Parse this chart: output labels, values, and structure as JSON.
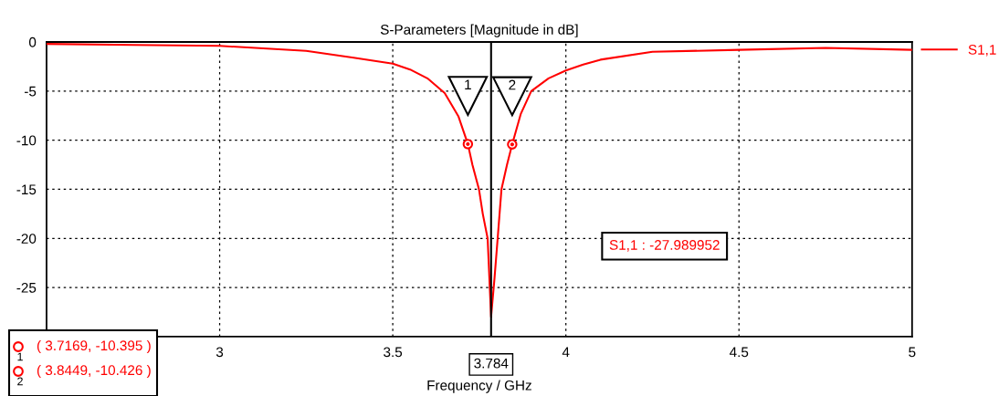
{
  "chart_data": {
    "type": "line",
    "title": "S-Parameters [Magnitude in dB]",
    "xlabel": "Frequency / GHz",
    "xlim": [
      2.5,
      5
    ],
    "xticks": [
      3,
      3.5,
      4,
      4.5,
      5
    ],
    "ylim": [
      -30,
      0
    ],
    "yticks": [
      0,
      -5,
      -10,
      -15,
      -20,
      -25
    ],
    "grid": true,
    "legend": "right",
    "line_style": "solid",
    "series": [
      {
        "name": "S1,1",
        "color": "#ff0000",
        "marker": "none",
        "x": [
          2.5,
          2.75,
          3.0,
          3.25,
          3.387,
          3.5,
          3.55,
          3.6,
          3.65,
          3.69,
          3.7169,
          3.73,
          3.749,
          3.76,
          3.774,
          3.784,
          3.794,
          3.803,
          3.814,
          3.83,
          3.8449,
          3.87,
          3.9,
          3.95,
          4.0,
          4.05,
          4.1,
          4.25,
          4.5,
          4.75,
          5.0
        ],
        "values": [
          -0.2,
          -0.3,
          -0.4,
          -0.9,
          -1.6,
          -2.2,
          -2.8,
          -3.7,
          -5.2,
          -7.6,
          -10.395,
          -12.5,
          -15.0,
          -17.5,
          -20.0,
          -27.989952,
          -24.0,
          -20.0,
          -15.0,
          -12.5,
          -10.426,
          -7.3,
          -5.0,
          -3.7,
          -2.9,
          -2.3,
          -1.8,
          -1.0,
          -0.8,
          -0.6,
          -0.8
        ]
      },
      {
        "color": "#ff0000",
        "type": "scatter",
        "marker": "circle",
        "x": [
          3.7169,
          3.8449
        ],
        "values": [
          -10.395,
          -10.426
        ]
      }
    ],
    "ref_lines": [
      {
        "axis": "x",
        "value": 3.784,
        "label": "3.784",
        "color": "#000000"
      }
    ],
    "annotations": [
      "1",
      "2",
      "S1,1 : -27.989952",
      "( 3.7169, -10.395 )",
      "( 3.8449, -10.426 )"
    ]
  }
}
